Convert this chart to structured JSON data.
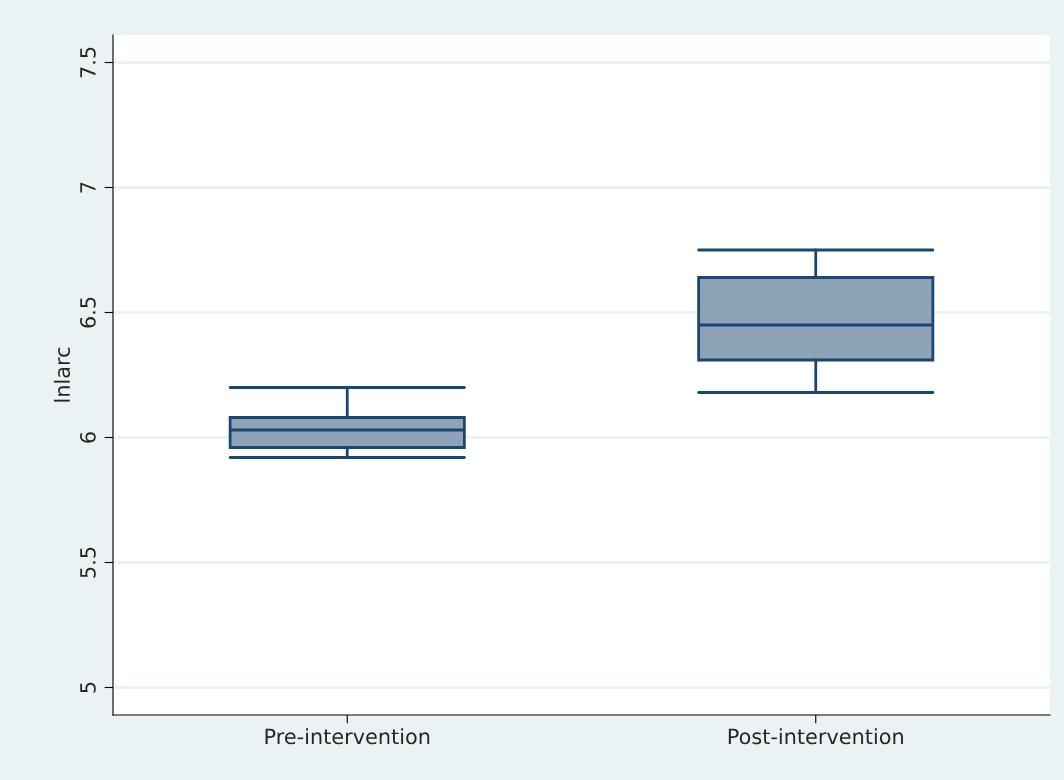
{
  "chart_data": {
    "type": "box",
    "ylabel": "lnlarc",
    "categories": [
      "Pre-intervention",
      "Post-intervention"
    ],
    "boxes": [
      {
        "low": 5.92,
        "q1": 5.96,
        "median": 6.03,
        "q3": 6.08,
        "high": 6.2
      },
      {
        "low": 6.18,
        "q1": 6.31,
        "median": 6.45,
        "q3": 6.64,
        "high": 6.75
      }
    ],
    "color": "#8ea3b7",
    "ylim": [
      4.89,
      7.61
    ],
    "yticks": [
      5,
      5.5,
      6,
      6.5,
      7,
      7.5
    ],
    "grid": "y"
  }
}
